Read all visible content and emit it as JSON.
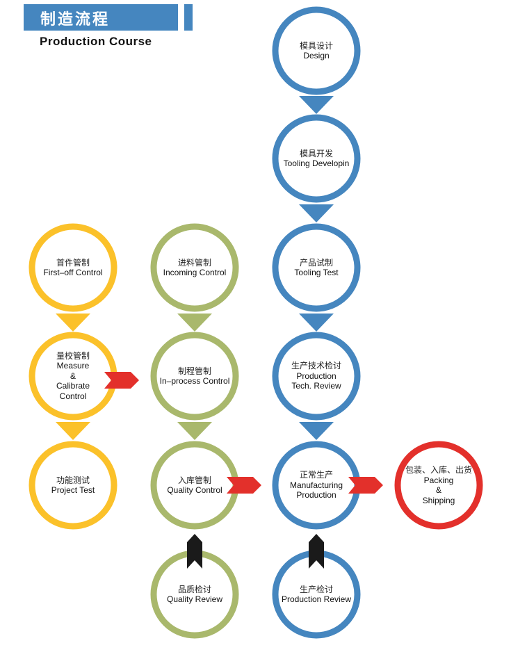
{
  "header": {
    "title_cn": "制造流程",
    "title_en": "Production Course"
  },
  "colors": {
    "blue": "#4586bf",
    "yellow": "#fbc12a",
    "green": "#a9b86c",
    "red": "#e3302b",
    "black": "#1a1a1a"
  },
  "nodes": [
    {
      "id": "design",
      "color": "blue",
      "cn": "模具设计",
      "en": [
        "Design"
      ]
    },
    {
      "id": "tooling-develop",
      "color": "blue",
      "cn": "模具开发",
      "en": [
        "Tooling Developin"
      ]
    },
    {
      "id": "tooling-test",
      "color": "blue",
      "cn": "产品试制",
      "en": [
        "Tooling Test"
      ]
    },
    {
      "id": "production-tech-review",
      "color": "blue",
      "cn": "生产技术检讨",
      "en": [
        "Production",
        "Tech. Review"
      ]
    },
    {
      "id": "manufacturing-production",
      "color": "blue",
      "cn": "正常生产",
      "en": [
        "Manufacturing",
        "Production"
      ]
    },
    {
      "id": "production-review",
      "color": "blue",
      "cn": "生产检讨",
      "en": [
        "Production Review"
      ]
    },
    {
      "id": "first-off-control",
      "color": "yellow",
      "cn": "首件管制",
      "en": [
        "First–off Control"
      ]
    },
    {
      "id": "measure-calibrate",
      "color": "yellow",
      "cn": "量校管制",
      "en": [
        "Measure",
        "&",
        "Calibrate",
        "Control"
      ]
    },
    {
      "id": "project-test",
      "color": "yellow",
      "cn": "功能测试",
      "en": [
        "Project Test"
      ]
    },
    {
      "id": "incoming-control",
      "color": "green",
      "cn": "进料管制",
      "en": [
        "Incoming Control"
      ]
    },
    {
      "id": "in-process-control",
      "color": "green",
      "cn": "制程管制",
      "en": [
        "In–process Control"
      ]
    },
    {
      "id": "quality-control",
      "color": "green",
      "cn": "入库管制",
      "en": [
        "Quality Control"
      ]
    },
    {
      "id": "quality-review",
      "color": "green",
      "cn": "品质检讨",
      "en": [
        "Quality Review"
      ]
    },
    {
      "id": "packing-shipping",
      "color": "red",
      "cn": "包装、入库、出货",
      "en": [
        "Packing",
        "&",
        "Shipping"
      ]
    }
  ]
}
